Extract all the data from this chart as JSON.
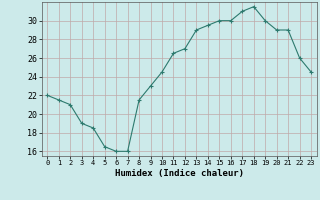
{
  "x": [
    0,
    1,
    2,
    3,
    4,
    5,
    6,
    7,
    8,
    9,
    10,
    11,
    12,
    13,
    14,
    15,
    16,
    17,
    18,
    19,
    20,
    21,
    22,
    23
  ],
  "y": [
    22,
    21.5,
    21,
    19,
    18.5,
    16.5,
    16,
    16,
    21.5,
    23,
    24.5,
    26.5,
    27,
    29,
    29.5,
    30,
    30,
    31,
    31.5,
    30,
    29,
    29,
    26,
    24.5
  ],
  "line_color": "#2d7a6e",
  "marker": "+",
  "marker_size": 3,
  "bg_color": "#cceaea",
  "grid_color": "#c0a8a8",
  "xlabel": "Humidex (Indice chaleur)",
  "xlim": [
    -0.5,
    23.5
  ],
  "ylim": [
    15.5,
    32
  ],
  "yticks": [
    16,
    18,
    20,
    22,
    24,
    26,
    28,
    30
  ],
  "xtick_labels": [
    "0",
    "1",
    "2",
    "3",
    "4",
    "5",
    "6",
    "7",
    "8",
    "9",
    "10",
    "11",
    "12",
    "13",
    "14",
    "15",
    "16",
    "17",
    "18",
    "19",
    "20",
    "21",
    "22",
    "23"
  ],
  "xlabel_fontsize": 6.5,
  "ytick_fontsize": 6,
  "xtick_fontsize": 5
}
